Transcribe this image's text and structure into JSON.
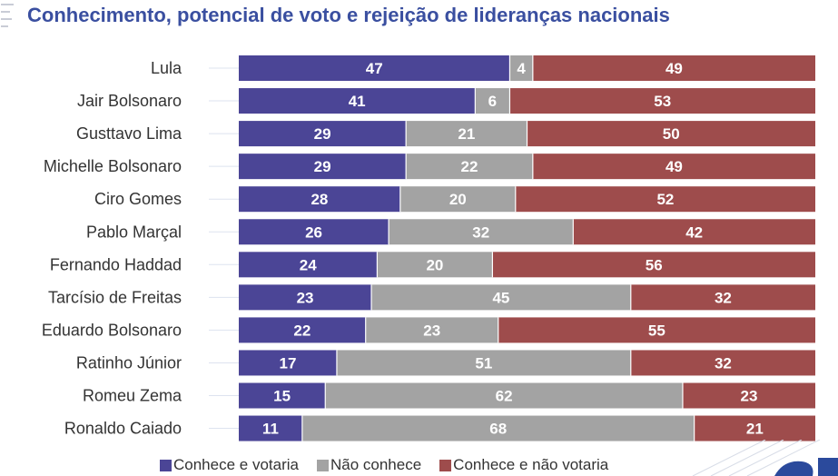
{
  "chart_data": {
    "type": "bar",
    "orientation": "horizontal",
    "stacked": true,
    "title": "Conhecimento, potencial de voto e rejeição de lideranças nacionais",
    "categories": [
      "Lula",
      "Jair Bolsonaro",
      "Gusttavo Lima",
      "Michelle Bolsonaro",
      "Ciro Gomes",
      "Pablo Marçal",
      "Fernando Haddad",
      "Tarcísio de Freitas",
      "Eduardo Bolsonaro",
      "Ratinho Júnior",
      "Romeu Zema",
      "Ronaldo Caiado"
    ],
    "series": [
      {
        "name": "Conhece e votaria",
        "color": "#4b4596",
        "values": [
          47,
          41,
          29,
          29,
          28,
          26,
          24,
          23,
          22,
          17,
          15,
          11
        ]
      },
      {
        "name": "Não conhece",
        "color": "#a3a3a3",
        "values": [
          4,
          6,
          21,
          22,
          20,
          32,
          20,
          45,
          23,
          51,
          62,
          68
        ]
      },
      {
        "name": "Conhece e não votaria",
        "color": "#9e4c4c",
        "values": [
          49,
          53,
          50,
          49,
          52,
          42,
          56,
          32,
          55,
          32,
          23,
          21
        ]
      }
    ],
    "xlim": [
      0,
      100
    ],
    "legend_position": "bottom",
    "grid": false
  }
}
